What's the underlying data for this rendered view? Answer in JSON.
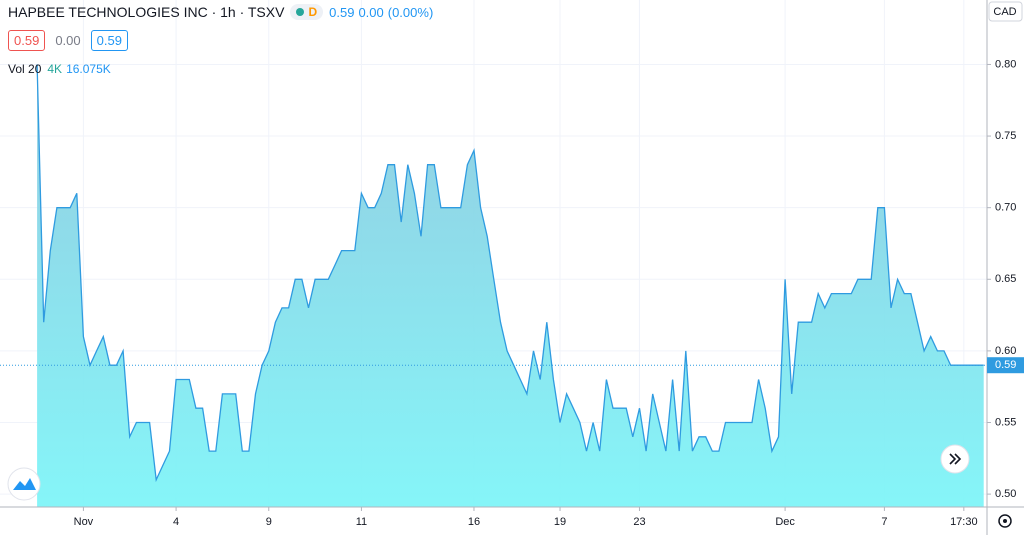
{
  "chart_data": {
    "type": "area",
    "title": "HAPBEE TECHNOLOGIES INC · 1h · TSXV",
    "interval_badge": "D",
    "quote": {
      "last": "0.59",
      "change": "0.00",
      "change_pct": "(0.00%)"
    },
    "bid_ask": {
      "bid": "0.59",
      "spread": "0.00",
      "ask": "0.59"
    },
    "volume": {
      "label": "Vol 20",
      "last": "4K",
      "average": "16.075K"
    },
    "currency": "CAD",
    "last_price": 0.59,
    "last_price_label": "0.59",
    "color": "#2f9be0",
    "grid": true,
    "ylim": [
      0.491,
      0.845
    ],
    "yticks": [
      {
        "value": 0.5,
        "label": "0.50"
      },
      0.55,
      {
        "value": 0.6,
        "label": "0.60"
      },
      0.65,
      {
        "value": 0.7,
        "label": "0.70"
      },
      0.75,
      {
        "value": 0.8,
        "label": "0.80"
      }
    ],
    "xlim": [
      -5.6,
      143.5
    ],
    "xticks": [
      {
        "value": 7,
        "label": "Nov"
      },
      {
        "value": 21,
        "label": "4"
      },
      {
        "value": 35,
        "label": "9"
      },
      {
        "value": 49,
        "label": "11"
      },
      {
        "value": 66,
        "label": "16"
      },
      {
        "value": 79,
        "label": "19"
      },
      {
        "value": 91,
        "label": "23"
      },
      {
        "value": 113,
        "label": "Dec"
      },
      {
        "value": 128,
        "label": "7"
      },
      {
        "value": 140,
        "label": "17:30"
      }
    ],
    "values": [
      0.8,
      0.62,
      0.67,
      0.7,
      0.7,
      0.7,
      0.71,
      0.61,
      0.59,
      0.6,
      0.61,
      0.59,
      0.59,
      0.6,
      0.54,
      0.55,
      0.55,
      0.55,
      0.51,
      0.52,
      0.53,
      0.58,
      0.58,
      0.58,
      0.56,
      0.56,
      0.53,
      0.53,
      0.57,
      0.57,
      0.57,
      0.53,
      0.53,
      0.57,
      0.59,
      0.6,
      0.62,
      0.63,
      0.63,
      0.65,
      0.65,
      0.63,
      0.65,
      0.65,
      0.65,
      0.66,
      0.67,
      0.67,
      0.67,
      0.71,
      0.7,
      0.7,
      0.71,
      0.73,
      0.73,
      0.69,
      0.73,
      0.71,
      0.68,
      0.73,
      0.73,
      0.7,
      0.7,
      0.7,
      0.7,
      0.73,
      0.74,
      0.7,
      0.68,
      0.65,
      0.62,
      0.6,
      0.59,
      0.58,
      0.57,
      0.6,
      0.58,
      0.62,
      0.58,
      0.55,
      0.57,
      0.56,
      0.55,
      0.53,
      0.55,
      0.53,
      0.58,
      0.56,
      0.56,
      0.56,
      0.54,
      0.56,
      0.53,
      0.57,
      0.55,
      0.53,
      0.58,
      0.53,
      0.6,
      0.53,
      0.54,
      0.54,
      0.53,
      0.53,
      0.55,
      0.55,
      0.55,
      0.55,
      0.55,
      0.58,
      0.56,
      0.53,
      0.54,
      0.65,
      0.57,
      0.62,
      0.62,
      0.62,
      0.64,
      0.63,
      0.64,
      0.64,
      0.64,
      0.64,
      0.65,
      0.65,
      0.65,
      0.7,
      0.7,
      0.63,
      0.65,
      0.64,
      0.64,
      0.62,
      0.6,
      0.61,
      0.6,
      0.6,
      0.59,
      0.59,
      0.59,
      0.59,
      0.59,
      0.59
    ]
  }
}
